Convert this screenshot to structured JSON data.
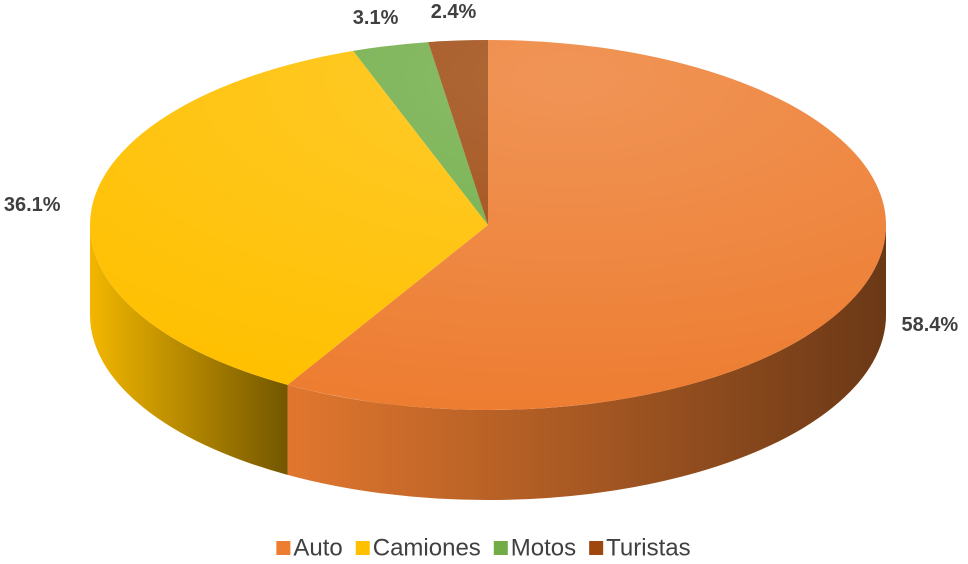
{
  "chart_data": {
    "type": "pie3d",
    "categories": [
      "Auto",
      "Camiones",
      "Motos",
      "Turistas"
    ],
    "values": [
      58.4,
      36.1,
      3.1,
      2.4
    ],
    "value_labels": [
      "58.4%",
      "36.1%",
      "3.1%",
      "2.4%"
    ],
    "colors": [
      "#ED7D31",
      "#FFC000",
      "#70AD47",
      "#9E480E"
    ],
    "legend": "bottom"
  }
}
